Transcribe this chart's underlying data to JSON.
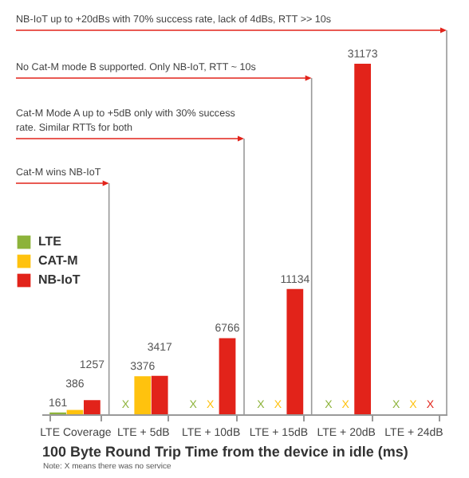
{
  "chart_data": {
    "type": "bar",
    "xlabel": "100 Byte Round Trip Time from the device in idle (ms)",
    "categories": [
      "LTE Coverage",
      "LTE + 5dB",
      "LTE + 10dB",
      "LTE + 15dB",
      "LTE + 20dB",
      "LTE + 24dB"
    ],
    "series": [
      {
        "name": "LTE",
        "color": "#8db33a",
        "values": [
          161,
          null,
          null,
          null,
          null,
          null
        ],
        "value_labels": [
          "161",
          "X",
          "X",
          "X",
          "X",
          "X"
        ]
      },
      {
        "name": "CAT-M",
        "color": "#ffc20e",
        "values": [
          386,
          3376,
          null,
          null,
          null,
          null
        ],
        "value_labels": [
          "386",
          "3376",
          "X",
          "X",
          "X",
          "X"
        ]
      },
      {
        "name": "NB-IoT",
        "color": "#e2231a",
        "values": [
          1257,
          3417,
          6766,
          11134,
          31173,
          null
        ],
        "value_labels": [
          "1257",
          "3417",
          "6766",
          "11134",
          "31173",
          "X"
        ]
      }
    ],
    "legend": "left",
    "annotations": [
      "NB-IoT up to +20dBs with 70% success rate, lack of 4dBs, RTT >> 10s",
      "No Cat-M mode B supported. Only NB-IoT, RTT ~ 10s",
      "Cat-M Mode A up to +5dB only with 30% success rate. Similar RTTs for both",
      "Cat-M wins NB-IoT",
      "Note: X means there was no service"
    ]
  }
}
